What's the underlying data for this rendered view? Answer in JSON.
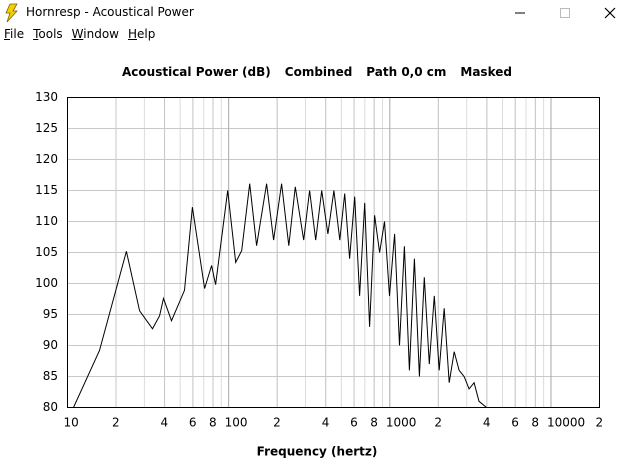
{
  "window": {
    "title": "Hornresp - Acoustical Power"
  },
  "menu": [
    "File",
    "Tools",
    "Window",
    "Help"
  ],
  "chart_data": {
    "type": "line",
    "title_parts": [
      "Acoustical Power (dB)",
      "Combined",
      "Path 0,0 cm",
      "Masked"
    ],
    "xlabel": "Frequency (hertz)",
    "log_x": true,
    "grid": true,
    "color": "#000000",
    "xlim": [
      10,
      20000
    ],
    "ylim": [
      80,
      130
    ],
    "yticks": [
      80,
      85,
      90,
      95,
      100,
      105,
      110,
      115,
      120,
      125,
      130
    ],
    "xticks": [
      10,
      {
        "value": 20,
        "label": "2"
      },
      {
        "value": 40,
        "label": "4"
      },
      {
        "value": 60,
        "label": "6"
      },
      {
        "value": 80,
        "label": "8"
      },
      100,
      {
        "value": 200,
        "label": "2"
      },
      {
        "value": 400,
        "label": "4"
      },
      {
        "value": 600,
        "label": "6"
      },
      {
        "value": 800,
        "label": "8"
      },
      1000,
      {
        "value": 2000,
        "label": "2"
      },
      {
        "value": 4000,
        "label": "4"
      },
      {
        "value": 6000,
        "label": "6"
      },
      {
        "value": 8000,
        "label": "8"
      },
      10000,
      {
        "value": 20000,
        "label": "2"
      }
    ],
    "x": [
      10.9,
      15.8,
      23.2,
      28,
      33.7,
      37.3,
      39.4,
      44.2,
      53.2,
      59.6,
      70.9,
      78.4,
      83,
      98.6,
      110.6,
      120.5,
      135,
      149,
      172,
      190,
      213,
      236,
      259,
      292,
      318,
      347,
      378,
      413,
      450,
      489,
      525,
      563,
      605,
      649,
      698,
      749,
      804,
      864,
      927,
      995,
      1070,
      1148,
      1232,
      1323,
      1420,
      1525,
      1637,
      1758,
      1887,
      2026,
      2175,
      2336,
      2508,
      2692,
      2891,
      3103,
      3332,
      3577,
      3985
    ],
    "values": [
      80,
      89.2,
      105.2,
      95.6,
      92.7,
      94.8,
      97.6,
      94,
      98.9,
      112.3,
      99.2,
      102.9,
      99.8,
      115,
      103.4,
      105.3,
      116.1,
      106.1,
      116.1,
      107,
      116.1,
      106.1,
      115.6,
      107,
      115,
      107,
      115,
      108,
      115,
      107,
      114.5,
      104,
      114,
      98,
      113,
      93,
      111,
      105,
      110,
      98,
      108,
      90,
      106,
      86,
      104,
      85,
      101,
      87,
      98,
      86,
      96,
      84,
      89,
      86,
      85,
      83,
      84,
      81,
      80
    ]
  }
}
